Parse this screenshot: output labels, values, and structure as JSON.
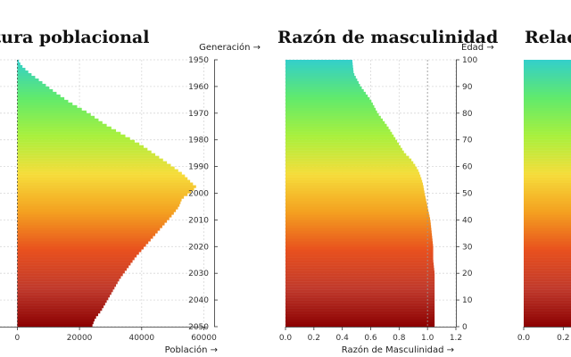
{
  "chart_data": [
    {
      "type": "bar",
      "orientation": "horizontal",
      "title": "Estructura poblacional",
      "xlabel": "Población →",
      "ylabel": "Generación →",
      "x_ticks": [
        "0",
        "20000",
        "40000",
        "60000"
      ],
      "xlim": [
        -7000,
        61000
      ],
      "y_ticks": [
        "1950",
        "1960",
        "1970",
        "1980",
        "1990",
        "2000",
        "2010",
        "2020",
        "2030",
        "2040",
        "2050"
      ],
      "ylim": [
        1950,
        2050
      ],
      "grid": true,
      "profile": [
        [
          1950,
          300
        ],
        [
          1952,
          1200
        ],
        [
          1955,
          4000
        ],
        [
          1958,
          7500
        ],
        [
          1962,
          12000
        ],
        [
          1966,
          17000
        ],
        [
          1970,
          23000
        ],
        [
          1974,
          28000
        ],
        [
          1978,
          34000
        ],
        [
          1982,
          40000
        ],
        [
          1986,
          45000
        ],
        [
          1990,
          50000
        ],
        [
          1993,
          53500
        ],
        [
          1996,
          56000
        ],
        [
          1997.5,
          57500
        ],
        [
          1999,
          56500
        ],
        [
          2002,
          53000
        ],
        [
          2005,
          52000
        ],
        [
          2008,
          50000
        ],
        [
          2012,
          47000
        ],
        [
          2016,
          44000
        ],
        [
          2020,
          41000
        ],
        [
          2024,
          38000
        ],
        [
          2028,
          35500
        ],
        [
          2032,
          33000
        ],
        [
          2036,
          31000
        ],
        [
          2040,
          29000
        ],
        [
          2044,
          27000
        ],
        [
          2047,
          25000
        ],
        [
          2050,
          24000
        ]
      ]
    },
    {
      "type": "bar",
      "orientation": "horizontal",
      "title": "Razón de masculinidad",
      "xlabel": "Razón de Masculinidad →",
      "ylabel": "Edad →",
      "x_ticks": [
        "0.0",
        "0.2",
        "0.4",
        "0.6",
        "0.8",
        "1.0",
        "1.2"
      ],
      "xlim": [
        0,
        1.2
      ],
      "y_ticks": [
        "0",
        "10",
        "20",
        "30",
        "40",
        "50",
        "60",
        "70",
        "80",
        "90",
        "100"
      ],
      "ylim": [
        0,
        100
      ],
      "reference_line": 1.0,
      "grid": true,
      "profile": [
        [
          0,
          1.05
        ],
        [
          5,
          1.05
        ],
        [
          10,
          1.05
        ],
        [
          15,
          1.05
        ],
        [
          20,
          1.05
        ],
        [
          25,
          1.04
        ],
        [
          30,
          1.04
        ],
        [
          35,
          1.03
        ],
        [
          40,
          1.02
        ],
        [
          45,
          1.0
        ],
        [
          50,
          0.98
        ],
        [
          53,
          0.97
        ],
        [
          55,
          0.96
        ],
        [
          58,
          0.94
        ],
        [
          60,
          0.92
        ],
        [
          63,
          0.88
        ],
        [
          65,
          0.84
        ],
        [
          70,
          0.78
        ],
        [
          75,
          0.72
        ],
        [
          80,
          0.65
        ],
        [
          85,
          0.6
        ],
        [
          90,
          0.53
        ],
        [
          95,
          0.48
        ],
        [
          100,
          0.47
        ]
      ]
    },
    {
      "type": "bar",
      "orientation": "horizontal",
      "title": "Relaci",
      "xlabel": "",
      "x_ticks": [
        "0.0",
        "0.2"
      ],
      "xlim": [
        0,
        0.6
      ],
      "ylim": [
        0,
        100
      ],
      "profile": [
        [
          0,
          1.0
        ],
        [
          100,
          1.0
        ]
      ]
    }
  ],
  "colors": {
    "gradient": [
      "#8b0000",
      "#c0392b",
      "#e8501e",
      "#f4a020",
      "#f6dd3a",
      "#a8f03c",
      "#61ea6c",
      "#33cfcb"
    ],
    "axis": "#333333",
    "reference": "#999999"
  }
}
